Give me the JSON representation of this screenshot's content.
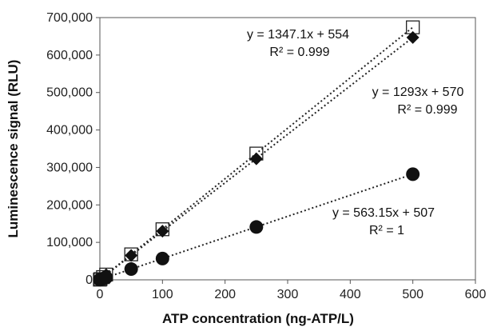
{
  "chart_data": {
    "type": "scatter",
    "xlabel": "ATP concentration (ng-ATP/L)",
    "ylabel": "Luminescence signal (RLU)",
    "xlim": [
      0,
      600
    ],
    "ylim": [
      0,
      700000
    ],
    "x_ticks": [
      0,
      100,
      200,
      300,
      400,
      500,
      600
    ],
    "y_ticks": [
      0,
      100000,
      200000,
      300000,
      400000,
      500000,
      600000,
      700000
    ],
    "x_tick_labels": [
      "0",
      "100",
      "200",
      "300",
      "400",
      "500",
      "600"
    ],
    "y_tick_labels": [
      "0",
      "100,000",
      "200,000",
      "300,000",
      "400,000",
      "500,000",
      "600,000",
      "700,000"
    ],
    "grid": false,
    "legend": "none",
    "series": [
      {
        "marker": "open-square",
        "color": "#222222",
        "x": [
          0,
          1,
          5,
          10,
          50,
          100,
          250,
          500
        ],
        "y": [
          554,
          1900,
          7300,
          14000,
          68000,
          135000,
          337000,
          674000
        ],
        "trendline": {
          "slope": 1347.1,
          "intercept": 554,
          "equation": "y = 1347.1x + 554",
          "r2": "R² = 0.999"
        }
      },
      {
        "marker": "filled-diamond",
        "color": "#111111",
        "x": [
          0,
          1,
          5,
          10,
          50,
          100,
          250,
          500
        ],
        "y": [
          570,
          1860,
          7000,
          13500,
          65000,
          130000,
          323000,
          647000
        ],
        "trendline": {
          "slope": 1293,
          "intercept": 570,
          "equation": "y = 1293x + 570",
          "r2": "R² = 0.999"
        }
      },
      {
        "marker": "filled-circle",
        "color": "#111111",
        "x": [
          0,
          1,
          5,
          10,
          50,
          100,
          250,
          500
        ],
        "y": [
          507,
          1070,
          3300,
          6100,
          28700,
          56800,
          141000,
          282000
        ],
        "trendline": {
          "slope": 563.15,
          "intercept": 507,
          "equation": "y = 563.15x + 507",
          "r2": "R² = 1"
        }
      }
    ]
  }
}
